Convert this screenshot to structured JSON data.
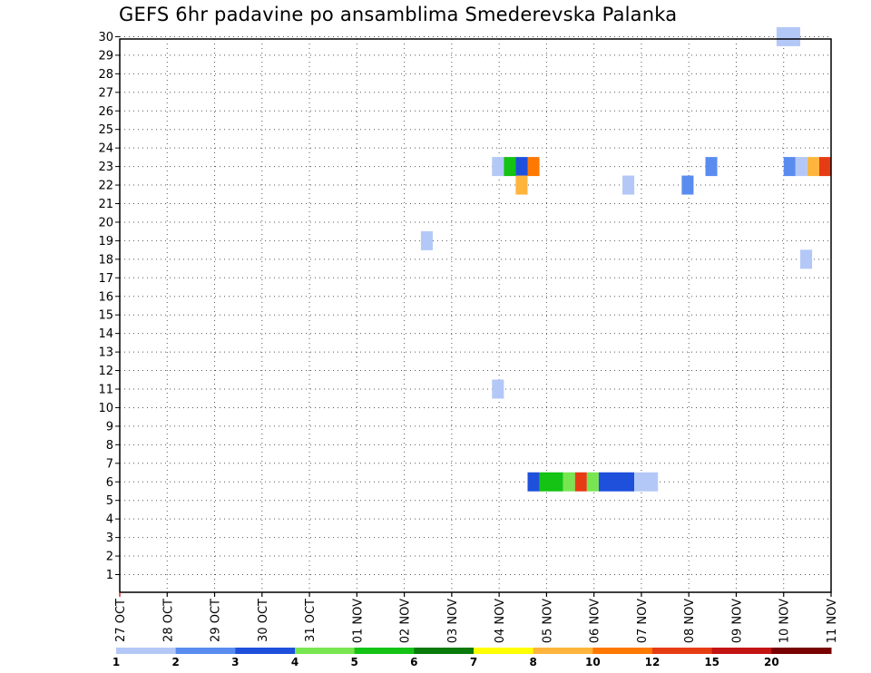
{
  "chart_data": {
    "type": "heatmap",
    "title": "GEFS 6hr padavine po ansamblima Smederevska Palanka",
    "x_tick_labels": [
      "27 OCT",
      "28 OCT",
      "29 OCT",
      "30 OCT",
      "31 OCT",
      "01 NOV",
      "02 NOV",
      "03 NOV",
      "04 NOV",
      "05 NOV",
      "06 NOV",
      "07 NOV",
      "08 NOV",
      "09 NOV",
      "10 NOV",
      "11 NOV"
    ],
    "y_tick_labels": [
      "1",
      "2",
      "3",
      "4",
      "5",
      "6",
      "7",
      "8",
      "9",
      "10",
      "11",
      "12",
      "13",
      "14",
      "15",
      "16",
      "17",
      "18",
      "19",
      "20",
      "21",
      "22",
      "23",
      "24",
      "25",
      "26",
      "27",
      "28",
      "29",
      "30"
    ],
    "xlim_days": [
      0,
      15
    ],
    "ylim": [
      0,
      30
    ],
    "grid": true,
    "legend": {
      "placement": "bottom",
      "colors": [
        "#b4c8f8",
        "#5a8cf0",
        "#1e50dc",
        "#78e650",
        "#14c314",
        "#0a7a0a",
        "#ffff00",
        "#ffb43c",
        "#ff7800",
        "#e63c14",
        "#c31414",
        "#780000"
      ],
      "labels": [
        "1",
        "2",
        "3",
        "4",
        "5",
        "6",
        "7",
        "8",
        "10",
        "12",
        "15",
        "20"
      ]
    },
    "cells": [
      {
        "member": 30,
        "x": 13.85,
        "w": 0.5,
        "color": "#b4c8f8"
      },
      {
        "member": 23,
        "x": 7.85,
        "w": 0.25,
        "color": "#b4c8f8"
      },
      {
        "member": 23,
        "x": 8.1,
        "w": 0.25,
        "color": "#14c314"
      },
      {
        "member": 23,
        "x": 8.35,
        "w": 0.25,
        "color": "#1e50dc"
      },
      {
        "member": 23,
        "x": 8.6,
        "w": 0.25,
        "color": "#ff7800"
      },
      {
        "member": 23,
        "x": 12.35,
        "w": 0.25,
        "color": "#5a8cf0"
      },
      {
        "member": 23,
        "x": 14.0,
        "w": 0.25,
        "color": "#5a8cf0"
      },
      {
        "member": 23,
        "x": 14.25,
        "w": 0.25,
        "color": "#b4c8f8"
      },
      {
        "member": 23,
        "x": 14.5,
        "w": 0.25,
        "color": "#ffb43c"
      },
      {
        "member": 23,
        "x": 14.75,
        "w": 0.25,
        "color": "#e63c14"
      },
      {
        "member": 22,
        "x": 8.35,
        "w": 0.25,
        "color": "#ffb43c"
      },
      {
        "member": 22,
        "x": 10.6,
        "w": 0.25,
        "color": "#b4c8f8"
      },
      {
        "member": 22,
        "x": 11.85,
        "w": 0.25,
        "color": "#5a8cf0"
      },
      {
        "member": 19,
        "x": 6.35,
        "w": 0.25,
        "color": "#b4c8f8"
      },
      {
        "member": 18,
        "x": 14.35,
        "w": 0.25,
        "color": "#b4c8f8"
      },
      {
        "member": 11,
        "x": 7.85,
        "w": 0.25,
        "color": "#b4c8f8"
      },
      {
        "member": 6,
        "x": 8.6,
        "w": 0.25,
        "color": "#1e50dc"
      },
      {
        "member": 6,
        "x": 8.85,
        "w": 0.5,
        "color": "#14c314"
      },
      {
        "member": 6,
        "x": 9.35,
        "w": 0.25,
        "color": "#78e650"
      },
      {
        "member": 6,
        "x": 9.6,
        "w": 0.25,
        "color": "#e63c14"
      },
      {
        "member": 6,
        "x": 9.85,
        "w": 0.25,
        "color": "#78e650"
      },
      {
        "member": 6,
        "x": 10.1,
        "w": 0.75,
        "color": "#1e50dc"
      },
      {
        "member": 6,
        "x": 10.85,
        "w": 0.5,
        "color": "#b4c8f8"
      }
    ]
  }
}
